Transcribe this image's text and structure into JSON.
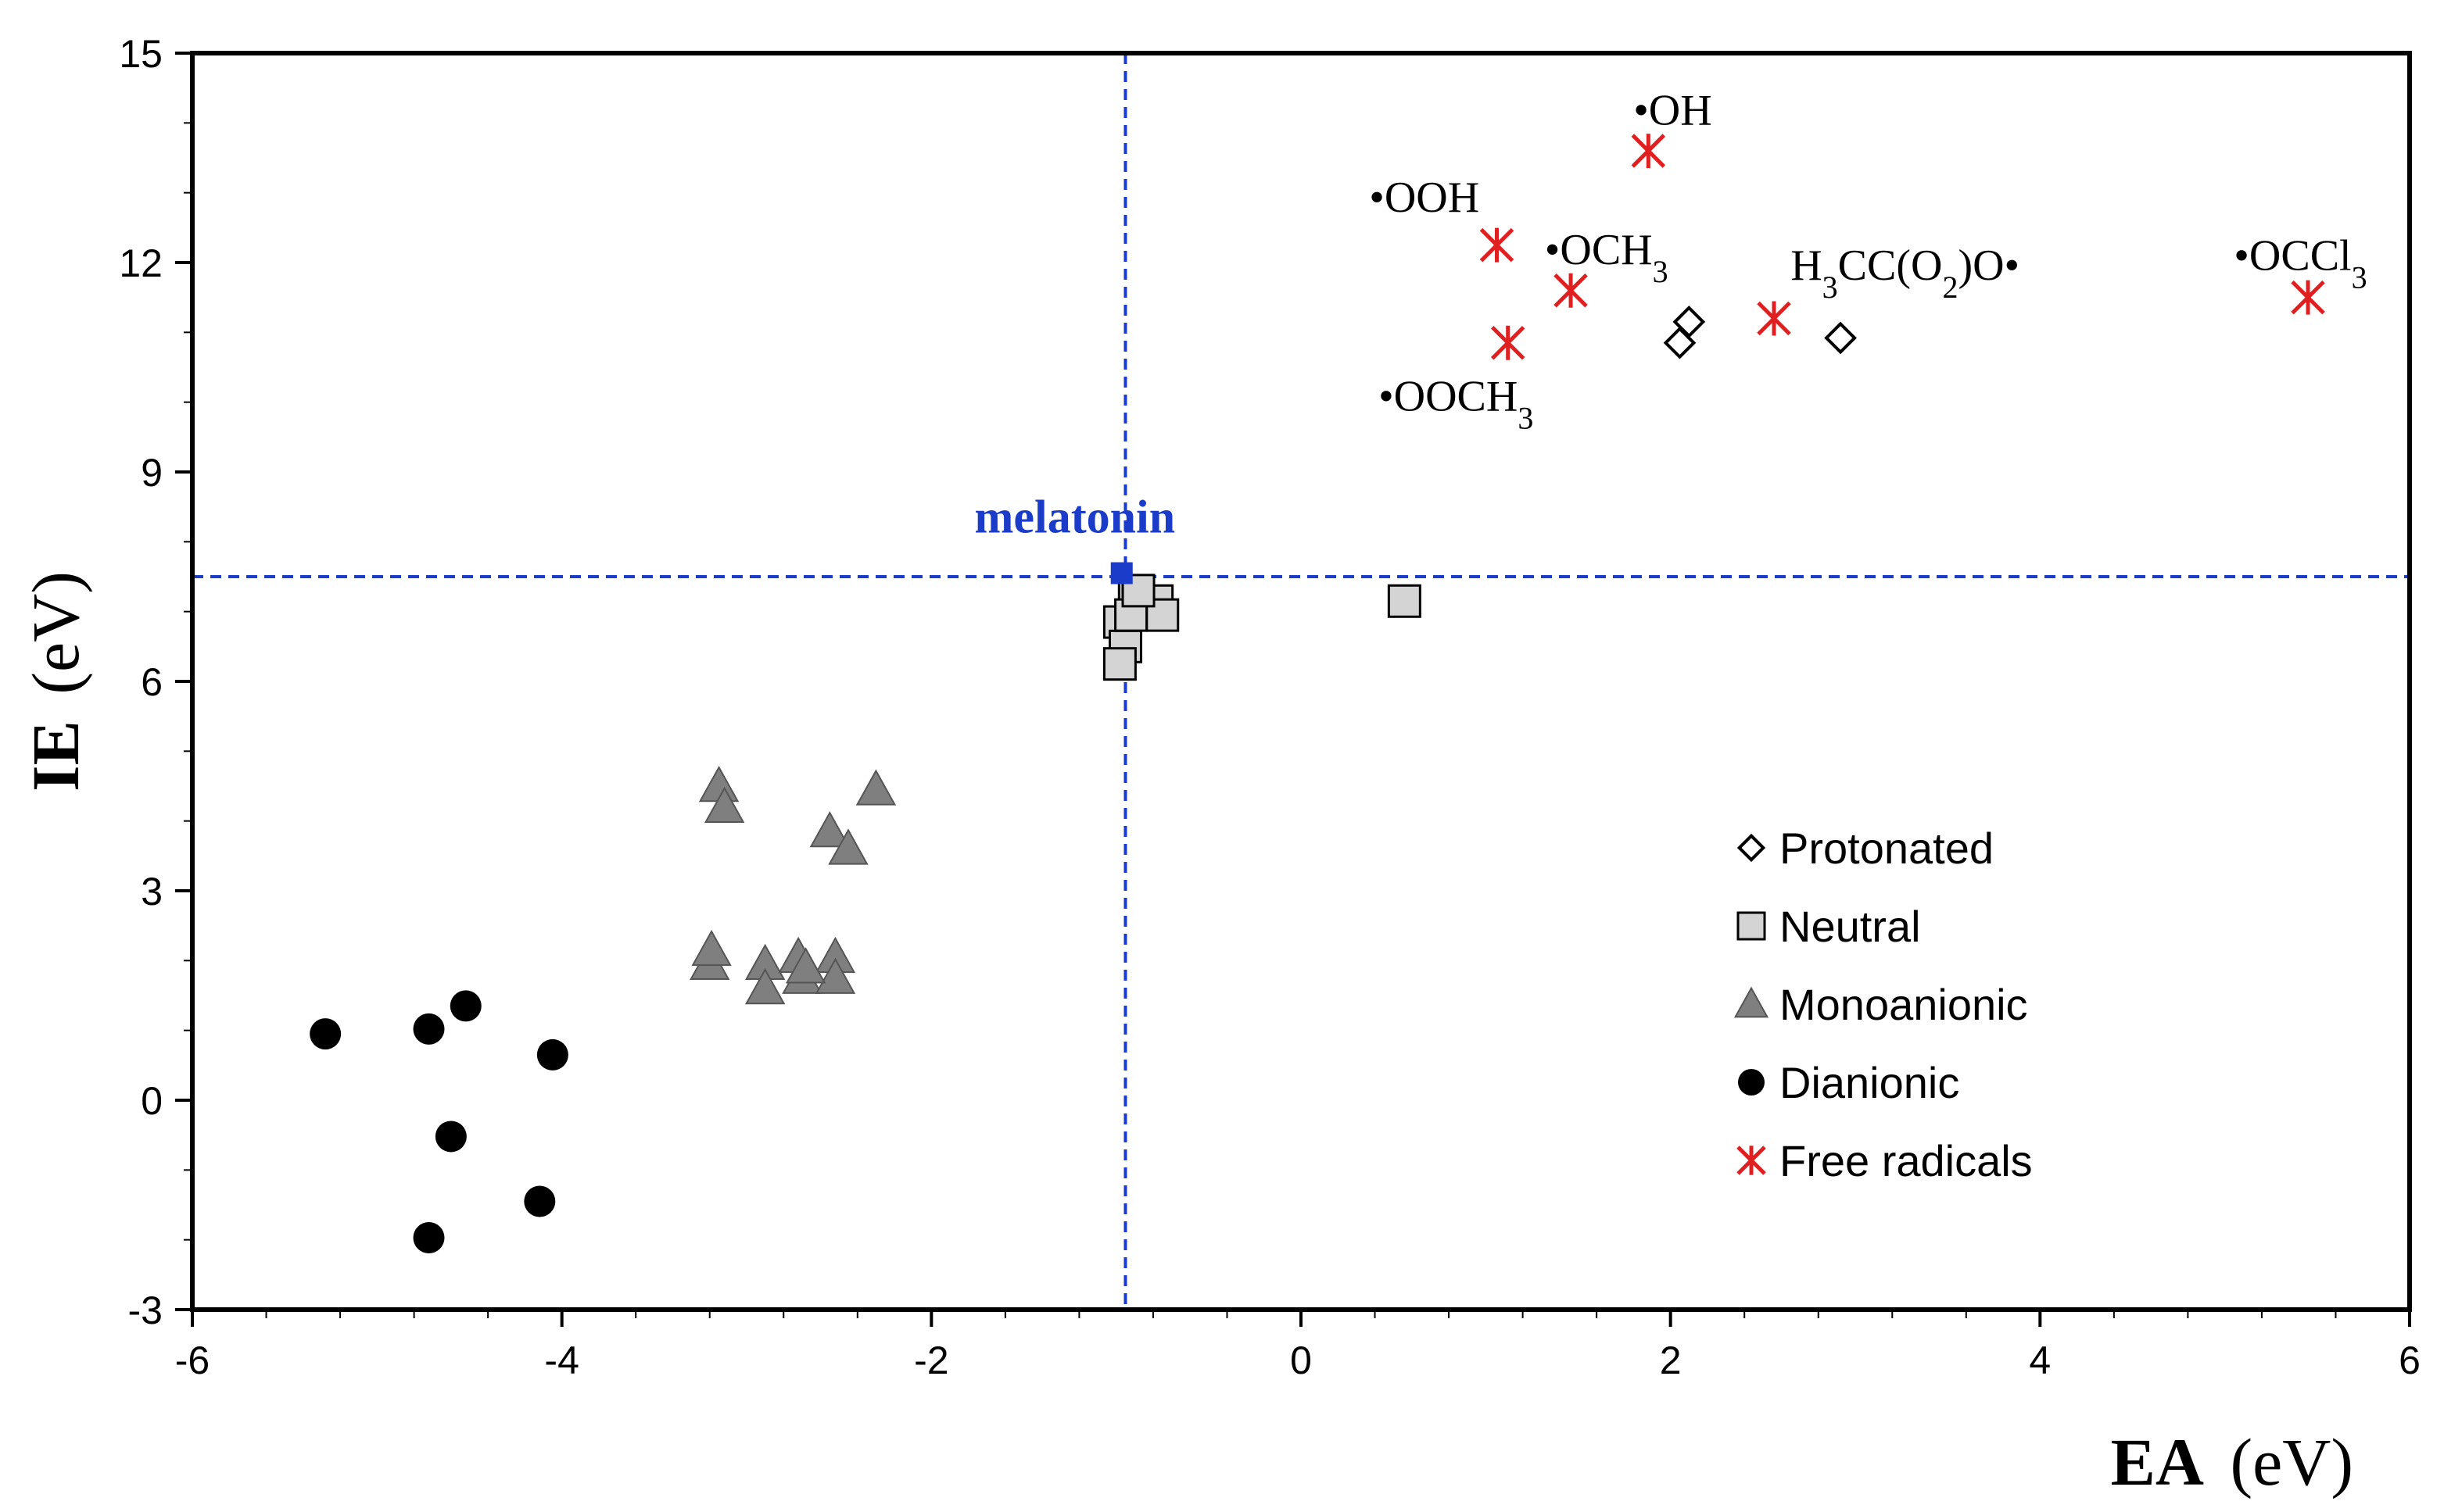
{
  "chart_data": {
    "type": "scatter",
    "xlabel_bold": "EA",
    "xlabel_unit": "(eV)",
    "ylabel_bold": "IE",
    "ylabel_unit": "(eV)",
    "xlim": [
      -6,
      6
    ],
    "ylim": [
      -3,
      15
    ],
    "xticks": [
      -6,
      -4,
      -2,
      0,
      2,
      4,
      6
    ],
    "yticks": [
      -3,
      0,
      3,
      6,
      9,
      12,
      15
    ],
    "grid": false,
    "legend_placement": "lower-right",
    "reference_lines": {
      "x": -0.95,
      "y": 7.5,
      "color": "#1a3cc8"
    },
    "highlight": {
      "label": "melatonin",
      "x": -0.97,
      "y": 7.55,
      "color": "#1a3cc8"
    },
    "series": [
      {
        "name": "Protonated",
        "marker": "diamond-open",
        "color": "#000000",
        "points": [
          [
            2.05,
            10.85
          ],
          [
            2.1,
            11.15
          ],
          [
            2.92,
            10.92
          ]
        ]
      },
      {
        "name": "Neutral",
        "marker": "square",
        "color": "#d4d4d4",
        "points": [
          [
            -0.98,
            6.85
          ],
          [
            -0.95,
            6.5
          ],
          [
            -0.98,
            6.25
          ],
          [
            -0.9,
            7.2
          ],
          [
            -0.85,
            7.0
          ],
          [
            -0.78,
            7.15
          ],
          [
            -0.75,
            6.95
          ],
          [
            -0.92,
            6.95
          ],
          [
            -0.88,
            7.3
          ],
          [
            0.56,
            7.15
          ]
        ]
      },
      {
        "name": "Monoanionic",
        "marker": "triangle",
        "color": "#7f7f7f",
        "points": [
          [
            -3.15,
            4.5
          ],
          [
            -3.12,
            4.2
          ],
          [
            -2.3,
            4.45
          ],
          [
            -2.55,
            3.85
          ],
          [
            -2.45,
            3.6
          ],
          [
            -3.2,
            1.95
          ],
          [
            -3.19,
            2.15
          ],
          [
            -2.9,
            1.95
          ],
          [
            -2.9,
            1.6
          ],
          [
            -2.72,
            2.05
          ],
          [
            -2.7,
            1.75
          ],
          [
            -2.52,
            2.05
          ],
          [
            -2.52,
            1.75
          ],
          [
            -2.68,
            1.9
          ]
        ]
      },
      {
        "name": "Dianionic",
        "marker": "circle",
        "color": "#000000",
        "points": [
          [
            -5.28,
            0.95
          ],
          [
            -4.72,
            1.02
          ],
          [
            -4.52,
            1.35
          ],
          [
            -4.05,
            0.65
          ],
          [
            -4.6,
            -0.52
          ],
          [
            -4.12,
            -1.45
          ],
          [
            -4.72,
            -1.97
          ]
        ]
      },
      {
        "name": "Free radicals",
        "marker": "asterisk",
        "color": "#e02020",
        "points": [
          [
            1.88,
            13.6
          ],
          [
            1.06,
            12.25
          ],
          [
            1.46,
            11.6
          ],
          [
            1.12,
            10.85
          ],
          [
            2.56,
            11.2
          ],
          [
            5.45,
            11.5
          ]
        ]
      }
    ],
    "annotations": [
      {
        "label_prefix": "•OH",
        "sub": "",
        "label_suffix": "",
        "x": 1.85,
        "y": 14.2
      },
      {
        "label_prefix": "•OOH",
        "sub": "",
        "label_suffix": "",
        "x": 0.42,
        "y": 12.95
      },
      {
        "label_prefix": "•OCH",
        "sub": "3",
        "label_suffix": "",
        "x": 1.37,
        "y": 12.2
      },
      {
        "label_prefix": "•OOCH",
        "sub": "3",
        "label_suffix": "",
        "x": 0.47,
        "y": 10.1
      },
      {
        "label_prefix": "•OCCl",
        "sub": "3",
        "label_suffix": "",
        "x": 5.1,
        "y": 12.12
      },
      {
        "label_prefix": "H",
        "sub": "3",
        "label_mid": "CC(O",
        "sub2": "2",
        "label_suffix": ")O•",
        "x": 3.83,
        "y": 11.98
      }
    ]
  }
}
